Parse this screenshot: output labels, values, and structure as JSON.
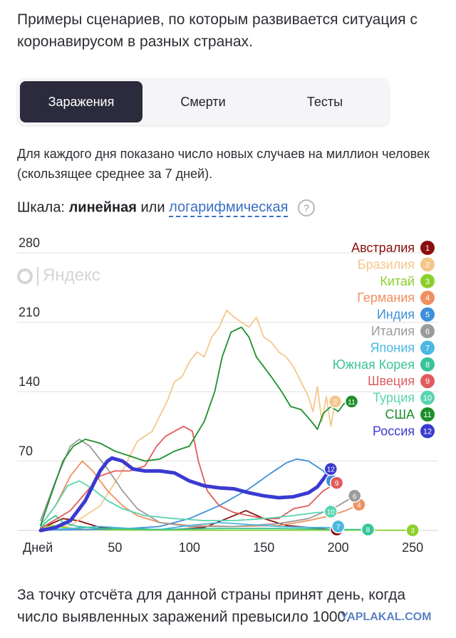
{
  "intro_text": "Примеры сценариев, по которым развивается ситуация с коронавирусом в разных странах.",
  "tabs": [
    {
      "label": "Заражения",
      "active": true
    },
    {
      "label": "Смерти",
      "active": false
    },
    {
      "label": "Тесты",
      "active": false
    }
  ],
  "note_text": "Для каждого дня показано число новых случаев на миллион человек (скользящее среднее за 7 дней).",
  "scale": {
    "prefix": "Шкала:",
    "current": "линейная",
    "or": "или",
    "alternative": "логарифмическая",
    "help_icon": "?"
  },
  "watermarks": {
    "yandex": "Яндекс",
    "yaplakal": "YAPLAKAL.COM"
  },
  "footer_text": "За точку отсчёта для данной страны принят день, когда число выявленных заражений превысило 1000.",
  "colors": {
    "accent": "#2b2b3d",
    "link": "#3a6fc4",
    "grid": "#e1e1e1"
  },
  "chart_data": {
    "type": "line",
    "xlabel": "Дней",
    "x_ticks": [
      50,
      100,
      150,
      200,
      250
    ],
    "y_ticks": [
      70,
      140,
      210,
      280
    ],
    "xlim": [
      0,
      260
    ],
    "ylim": [
      0,
      280
    ],
    "legend_position": "top-right",
    "series": [
      {
        "name": "Австралия",
        "number": "1",
        "color": "#8b0e0e",
        "points": [
          [
            0,
            2
          ],
          [
            15,
            12
          ],
          [
            25,
            10
          ],
          [
            40,
            3
          ],
          [
            60,
            1
          ],
          [
            90,
            1
          ],
          [
            110,
            3
          ],
          [
            125,
            12
          ],
          [
            138,
            20
          ],
          [
            150,
            12
          ],
          [
            165,
            5
          ],
          [
            180,
            3
          ],
          [
            195,
            1
          ],
          [
            199,
            1
          ]
        ]
      },
      {
        "name": "Бразилия",
        "number": "2",
        "color": "#f5c68a",
        "points": [
          [
            0,
            1
          ],
          [
            20,
            5
          ],
          [
            40,
            25
          ],
          [
            55,
            60
          ],
          [
            65,
            90
          ],
          [
            75,
            100
          ],
          [
            85,
            130
          ],
          [
            90,
            150
          ],
          [
            95,
            155
          ],
          [
            100,
            170
          ],
          [
            105,
            180
          ],
          [
            110,
            175
          ],
          [
            115,
            195
          ],
          [
            120,
            205
          ],
          [
            125,
            222
          ],
          [
            130,
            215
          ],
          [
            135,
            210
          ],
          [
            140,
            205
          ],
          [
            145,
            215
          ],
          [
            150,
            195
          ],
          [
            155,
            190
          ],
          [
            160,
            180
          ],
          [
            165,
            175
          ],
          [
            170,
            165
          ],
          [
            175,
            150
          ],
          [
            180,
            135
          ],
          [
            183,
            120
          ],
          [
            186,
            145
          ],
          [
            189,
            110
          ],
          [
            192,
            135
          ],
          [
            195,
            105
          ],
          [
            198,
            130
          ]
        ]
      },
      {
        "name": "Китай",
        "number": "3",
        "color": "#8ccf2b",
        "points": [
          [
            0,
            3
          ],
          [
            8,
            5
          ],
          [
            16,
            3
          ],
          [
            30,
            1
          ],
          [
            60,
            0.5
          ],
          [
            120,
            0.3
          ],
          [
            200,
            0.3
          ],
          [
            250,
            0.2
          ]
        ]
      },
      {
        "name": "Германия",
        "number": "4",
        "color": "#f09060",
        "points": [
          [
            0,
            5
          ],
          [
            10,
            25
          ],
          [
            20,
            55
          ],
          [
            28,
            70
          ],
          [
            35,
            60
          ],
          [
            45,
            40
          ],
          [
            55,
            25
          ],
          [
            65,
            15
          ],
          [
            80,
            8
          ],
          [
            100,
            5
          ],
          [
            130,
            4
          ],
          [
            160,
            5
          ],
          [
            180,
            10
          ],
          [
            195,
            15
          ],
          [
            205,
            20
          ],
          [
            214,
            26
          ]
        ]
      },
      {
        "name": "Индия",
        "number": "5",
        "color": "#3d8fd8",
        "points": [
          [
            0,
            0.5
          ],
          [
            30,
            1
          ],
          [
            60,
            2
          ],
          [
            80,
            4
          ],
          [
            100,
            12
          ],
          [
            120,
            25
          ],
          [
            140,
            42
          ],
          [
            155,
            58
          ],
          [
            165,
            68
          ],
          [
            172,
            72
          ],
          [
            180,
            70
          ],
          [
            190,
            60
          ],
          [
            196,
            50
          ]
        ]
      },
      {
        "name": "Италия",
        "number": "6",
        "color": "#9b9b9b",
        "points": [
          [
            0,
            10
          ],
          [
            10,
            50
          ],
          [
            20,
            85
          ],
          [
            26,
            92
          ],
          [
            33,
            85
          ],
          [
            45,
            62
          ],
          [
            55,
            40
          ],
          [
            65,
            22
          ],
          [
            80,
            8
          ],
          [
            100,
            4
          ],
          [
            130,
            4
          ],
          [
            160,
            7
          ],
          [
            180,
            12
          ],
          [
            200,
            25
          ],
          [
            211,
            35
          ]
        ]
      },
      {
        "name": "Япония",
        "number": "7",
        "color": "#4ab8e0",
        "points": [
          [
            0,
            0.5
          ],
          [
            20,
            2
          ],
          [
            40,
            4
          ],
          [
            60,
            2
          ],
          [
            80,
            1
          ],
          [
            100,
            5
          ],
          [
            120,
            8
          ],
          [
            140,
            6
          ],
          [
            160,
            4
          ],
          [
            180,
            3
          ],
          [
            200,
            3
          ],
          [
            200,
            4
          ]
        ]
      },
      {
        "name": "Южная Корея",
        "number": "8",
        "color": "#38c498",
        "points": [
          [
            0,
            3
          ],
          [
            5,
            10
          ],
          [
            10,
            15
          ],
          [
            15,
            8
          ],
          [
            25,
            4
          ],
          [
            40,
            2
          ],
          [
            80,
            1
          ],
          [
            120,
            2
          ],
          [
            160,
            2
          ],
          [
            200,
            1
          ],
          [
            220,
            1
          ]
        ]
      },
      {
        "name": "Швеция",
        "number": "9",
        "color": "#e05c5c",
        "points": [
          [
            0,
            2
          ],
          [
            20,
            20
          ],
          [
            40,
            55
          ],
          [
            50,
            60
          ],
          [
            60,
            60
          ],
          [
            70,
            65
          ],
          [
            78,
            85
          ],
          [
            84,
            95
          ],
          [
            90,
            100
          ],
          [
            96,
            105
          ],
          [
            102,
            100
          ],
          [
            106,
            70
          ],
          [
            112,
            40
          ],
          [
            120,
            25
          ],
          [
            130,
            18
          ],
          [
            140,
            15
          ],
          [
            150,
            12
          ],
          [
            160,
            12
          ],
          [
            170,
            22
          ],
          [
            180,
            25
          ],
          [
            190,
            40
          ],
          [
            199,
            48
          ]
        ]
      },
      {
        "name": "Турция",
        "number": "10",
        "color": "#58d4b0",
        "points": [
          [
            0,
            5
          ],
          [
            10,
            25
          ],
          [
            18,
            45
          ],
          [
            26,
            50
          ],
          [
            35,
            42
          ],
          [
            45,
            30
          ],
          [
            55,
            22
          ],
          [
            70,
            15
          ],
          [
            90,
            12
          ],
          [
            110,
            10
          ],
          [
            130,
            10
          ],
          [
            150,
            12
          ],
          [
            170,
            15
          ],
          [
            185,
            18
          ],
          [
            195,
            19
          ]
        ]
      },
      {
        "name": "США",
        "number": "11",
        "color": "#1d8f2b",
        "points": [
          [
            0,
            5
          ],
          [
            8,
            40
          ],
          [
            15,
            70
          ],
          [
            22,
            85
          ],
          [
            30,
            92
          ],
          [
            40,
            88
          ],
          [
            50,
            80
          ],
          [
            60,
            75
          ],
          [
            70,
            70
          ],
          [
            80,
            72
          ],
          [
            90,
            80
          ],
          [
            100,
            85
          ],
          [
            110,
            110
          ],
          [
            117,
            140
          ],
          [
            122,
            175
          ],
          [
            128,
            200
          ],
          [
            135,
            205
          ],
          [
            140,
            195
          ],
          [
            145,
            175
          ],
          [
            150,
            165
          ],
          [
            155,
            155
          ],
          [
            162,
            140
          ],
          [
            168,
            125
          ],
          [
            175,
            122
          ],
          [
            182,
            110
          ],
          [
            186,
            102
          ],
          [
            190,
            118
          ],
          [
            195,
            125
          ],
          [
            200,
            120
          ],
          [
            204,
            128
          ],
          [
            209,
            130
          ]
        ]
      },
      {
        "name": "Россия",
        "number": "12",
        "color": "#3a3ad0",
        "points": [
          [
            0,
            0
          ],
          [
            10,
            3
          ],
          [
            20,
            10
          ],
          [
            30,
            30
          ],
          [
            35,
            45
          ],
          [
            40,
            60
          ],
          [
            45,
            70
          ],
          [
            48,
            73
          ],
          [
            55,
            70
          ],
          [
            62,
            62
          ],
          [
            70,
            60
          ],
          [
            80,
            60
          ],
          [
            90,
            58
          ],
          [
            100,
            50
          ],
          [
            110,
            45
          ],
          [
            120,
            43
          ],
          [
            130,
            42
          ],
          [
            140,
            38
          ],
          [
            150,
            35
          ],
          [
            160,
            33
          ],
          [
            170,
            34
          ],
          [
            180,
            38
          ],
          [
            186,
            44
          ],
          [
            190,
            52
          ],
          [
            195,
            62
          ]
        ]
      }
    ]
  }
}
